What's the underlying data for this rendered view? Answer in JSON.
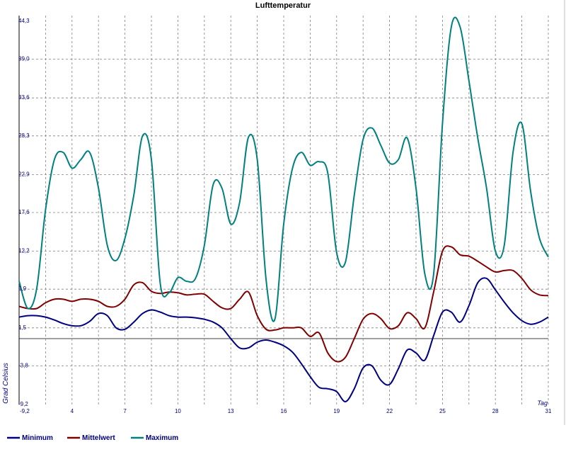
{
  "chart_data": {
    "type": "line",
    "title": "Lufttemperatur",
    "xlabel": "Tag",
    "ylabel": "Grad Celsius",
    "x_ticks": [
      4,
      7,
      10,
      13,
      16,
      19,
      22,
      25,
      28,
      31
    ],
    "y_ticks": [
      "44,3",
      "39,0",
      "33,6",
      "28,3",
      "22,9",
      "17,6",
      "12,2",
      "6,9",
      "1,5",
      "-3,8",
      "-9,2"
    ],
    "xlim": [
      1,
      31
    ],
    "ylim": [
      -9.2,
      44.3
    ],
    "zero_line": 0,
    "grid": true,
    "legend_position": "bottom",
    "series": [
      {
        "name": "Minimum",
        "color": "#000080",
        "x": [
          1,
          1.5,
          2,
          2.5,
          3,
          3.5,
          4,
          4.5,
          5,
          5.5,
          6,
          6.5,
          7,
          7.5,
          8,
          8.5,
          9,
          9.5,
          10,
          10.5,
          11,
          11.5,
          12,
          12.5,
          13,
          13.5,
          14,
          14.5,
          15,
          15.5,
          16,
          16.5,
          17,
          17.5,
          18,
          18.5,
          19,
          19.5,
          20,
          20.5,
          21,
          21.5,
          22,
          22.5,
          23,
          23.5,
          24,
          24.5,
          25,
          25.5,
          26,
          26.5,
          27,
          27.5,
          28,
          28.5,
          29,
          29.5,
          30,
          30.5,
          31
        ],
        "values": [
          3.0,
          3.2,
          3.2,
          3.0,
          2.6,
          2.1,
          1.8,
          1.8,
          2.4,
          3.5,
          3.2,
          1.5,
          1.3,
          2.3,
          3.5,
          4.0,
          3.7,
          3.2,
          3.0,
          3.0,
          2.9,
          2.7,
          2.3,
          1.5,
          0.0,
          -1.3,
          -1.3,
          -0.5,
          -0.2,
          -0.5,
          -1.0,
          -1.9,
          -3.5,
          -5.3,
          -6.8,
          -7.0,
          -7.4,
          -8.8,
          -7.0,
          -4.1,
          -3.8,
          -5.8,
          -6.4,
          -4.2,
          -1.6,
          -2.0,
          -3.0,
          0.4,
          3.7,
          3.7,
          2.3,
          4.6,
          7.8,
          8.4,
          6.8,
          5.1,
          3.6,
          2.5,
          2.0,
          2.3,
          3.0
        ]
      },
      {
        "name": "Mittelwert",
        "color": "#800000",
        "x": [
          1,
          1.5,
          2,
          2.5,
          3,
          3.5,
          4,
          4.5,
          5,
          5.5,
          6,
          6.5,
          7,
          7.5,
          8,
          8.5,
          9,
          9.5,
          10,
          10.5,
          11,
          11.5,
          12,
          12.5,
          13,
          13.5,
          14,
          14.5,
          15,
          15.5,
          16,
          16.5,
          17,
          17.5,
          18,
          18.5,
          19,
          19.5,
          20,
          20.5,
          21,
          21.5,
          22,
          22.5,
          23,
          23.5,
          24,
          24.5,
          25,
          25.5,
          26,
          26.5,
          27,
          27.5,
          28,
          28.5,
          29,
          29.5,
          30,
          30.5,
          31
        ],
        "values": [
          4.5,
          4.2,
          4.2,
          5.0,
          5.5,
          5.5,
          5.2,
          5.5,
          5.5,
          5.2,
          4.5,
          4.5,
          5.5,
          7.5,
          7.8,
          6.6,
          6.3,
          6.5,
          6.4,
          6.1,
          6.2,
          6.2,
          5.2,
          4.3,
          4.2,
          5.5,
          6.5,
          3.2,
          1.3,
          1.2,
          1.5,
          1.5,
          1.5,
          0.3,
          0.8,
          -2.0,
          -3.2,
          -2.6,
          0.0,
          2.7,
          3.5,
          2.8,
          1.4,
          1.8,
          3.6,
          2.8,
          1.5,
          6.5,
          12.2,
          12.8,
          11.7,
          11.5,
          10.8,
          10.0,
          9.3,
          9.5,
          9.5,
          8.4,
          6.8,
          6.1,
          6.0
        ]
      },
      {
        "name": "Maximum",
        "color": "#008080",
        "x": [
          1,
          1.5,
          2,
          2.5,
          3,
          3.5,
          4,
          4.5,
          5,
          5.5,
          6,
          6.5,
          7,
          7.5,
          8,
          8.5,
          9,
          9.5,
          10,
          10.5,
          11,
          11.5,
          12,
          12.5,
          13,
          13.5,
          14,
          14.5,
          15,
          15.5,
          16,
          16.5,
          17,
          17.5,
          18,
          18.5,
          19,
          19.5,
          20,
          20.5,
          21,
          21.5,
          22,
          22.5,
          23,
          23.5,
          24,
          24.5,
          25,
          25.5,
          26,
          26.5,
          27,
          27.5,
          28,
          28.5,
          29,
          29.5,
          30,
          30.5,
          31
        ],
        "values": [
          8.0,
          4.2,
          7.0,
          18.0,
          25.0,
          26.0,
          23.8,
          25.0,
          26.0,
          21.0,
          13.0,
          10.9,
          14.0,
          20.0,
          28.3,
          25.0,
          7.7,
          6.4,
          8.5,
          8.0,
          8.4,
          13.0,
          21.5,
          21.0,
          16.0,
          19.0,
          28.1,
          25.0,
          8.2,
          2.7,
          16.0,
          23.8,
          26.0,
          24.2,
          24.7,
          23.1,
          12.0,
          10.7,
          20.0,
          27.8,
          29.4,
          27.0,
          24.5,
          25.0,
          28.0,
          21.0,
          9.0,
          9.0,
          30.0,
          43.5,
          43.5,
          36.0,
          28.0,
          21.0,
          12.2,
          13.0,
          26.0,
          30.0,
          20.5,
          14.0,
          11.4
        ]
      }
    ]
  }
}
